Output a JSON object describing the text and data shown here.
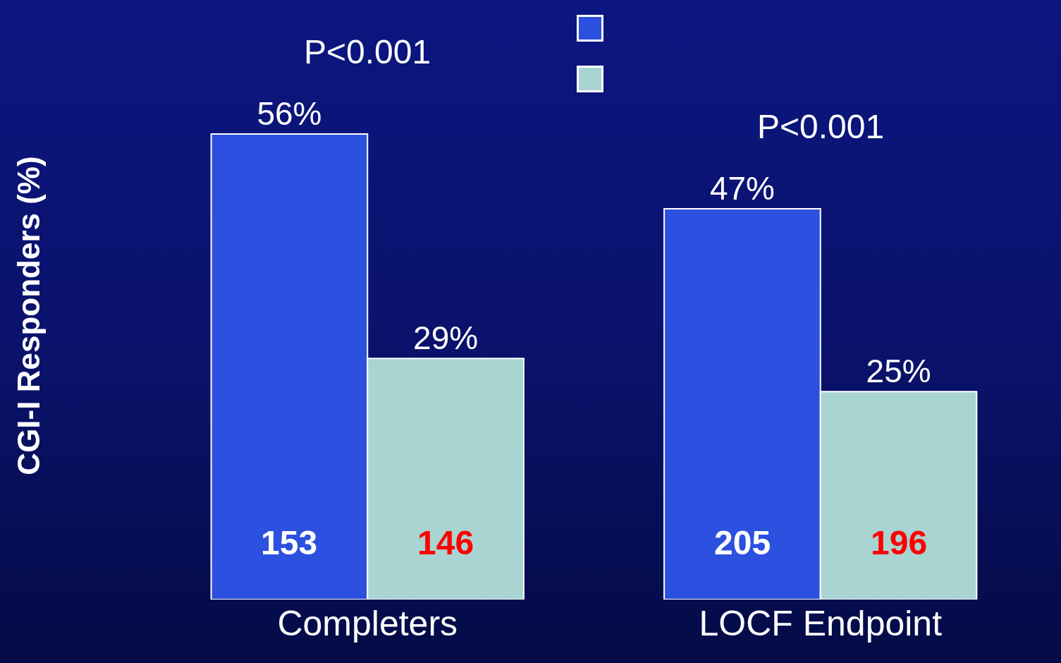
{
  "chart_data": {
    "type": "bar",
    "categories": [
      "Completers",
      "LOCF Endpoint"
    ],
    "ylabel": "CGI-I Responders (%)",
    "series": [
      {
        "color": "#2c50e0",
        "values": [
          56,
          47
        ],
        "value_labels": [
          "56%",
          "47%"
        ]
      },
      {
        "color": "#a8d4d2",
        "values": [
          29,
          25
        ],
        "value_labels": [
          "29%",
          "25%"
        ]
      }
    ],
    "tick_labels": "x",
    "annotations": [
      {
        "text": "P<0.001",
        "x": "Completers",
        "y": 56
      },
      {
        "text": "P<0.001",
        "x": "LOCF Endpoint",
        "y": 47
      },
      "153",
      "146",
      "205",
      "196"
    ]
  }
}
